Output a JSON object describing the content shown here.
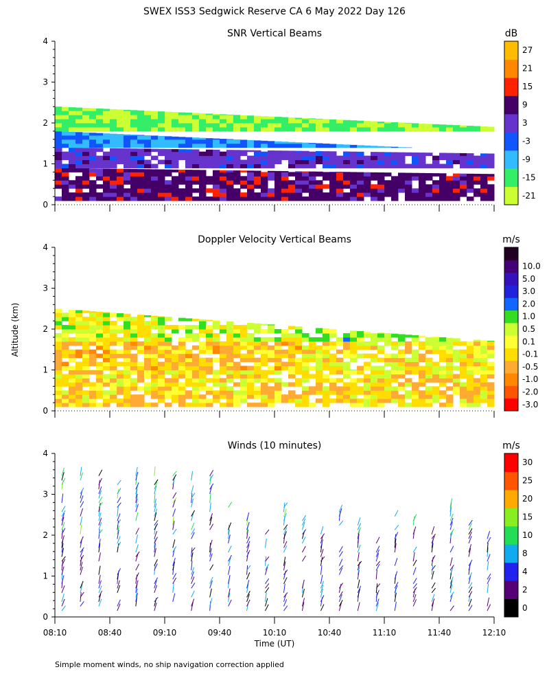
{
  "page_title": "SWEX ISS3 Sedgwick Reserve CA   6 May 2022 Day 126",
  "footnote": "Simple moment winds, no ship navigation correction applied",
  "ylabel": "Altitude (km)",
  "xlabel": "Time (UT)",
  "time_ticks": [
    "08:10",
    "08:40",
    "09:10",
    "09:40",
    "10:10",
    "10:40",
    "11:10",
    "11:40",
    "12:10"
  ],
  "colors": {
    "snr": [
      "#ccff33",
      "#33ee66",
      "#33bbff",
      "#1155ff",
      "#6633cc",
      "#440066",
      "#ff2200",
      "#ff8800",
      "#ffbb00"
    ],
    "doppler": [
      "#ff0000",
      "#ff5500",
      "#ff8800",
      "#ffaa33",
      "#ffdd00",
      "#ffff33",
      "#ccff33",
      "#33dd22",
      "#1166ff",
      "#2222dd",
      "#3311bb",
      "#440077",
      "#220022"
    ],
    "wind": [
      "#000000",
      "#550077",
      "#2222ee",
      "#11aaee",
      "#22dd55",
      "#88ee22",
      "#ffaa00",
      "#ff5500",
      "#ff0000"
    ]
  },
  "chart_data": [
    {
      "type": "heatmap",
      "title": "SNR Vertical Beams",
      "unit": "dB",
      "x_range": [
        "08:10",
        "12:10"
      ],
      "ylim": [
        0,
        4
      ],
      "yticks": [
        0,
        1,
        2,
        3,
        4
      ],
      "colorbar_labels": [
        "-21",
        "-15",
        "-9",
        "-3",
        "3",
        "9",
        "15",
        "21",
        "27"
      ],
      "colorbar_bounds": [
        -24,
        -18,
        -12,
        -6,
        0,
        6,
        12,
        18,
        24,
        30
      ],
      "profile_summary": [
        {
          "altitude_km_from": 0.1,
          "altitude_km_to": 0.9,
          "snr_db": 9
        },
        {
          "altitude_km_from": 0.9,
          "altitude_km_to": 1.4,
          "snr_db": 3
        },
        {
          "altitude_km_from": 1.4,
          "altitude_km_to": 1.8,
          "snr_db": -6
        },
        {
          "altitude_km_from": 1.8,
          "altitude_km_to": 2.4,
          "snr_db": -18
        }
      ]
    },
    {
      "type": "heatmap",
      "title": "Doppler Velocity Vertical Beams",
      "unit": "m/s",
      "x_range": [
        "08:10",
        "12:10"
      ],
      "ylim": [
        0,
        4
      ],
      "yticks": [
        0,
        1,
        2,
        3,
        4
      ],
      "colorbar_labels": [
        "-3.0",
        "-2.0",
        "-1.0",
        "-0.5",
        "-0.1",
        "0.1",
        "0.5",
        "1.0",
        "2.0",
        "3.0",
        "5.0",
        "10.0"
      ],
      "profile_summary": [
        {
          "altitude_km_from": 0.1,
          "altitude_km_to": 1.0,
          "velocity_ms": -0.3
        },
        {
          "altitude_km_from": 1.0,
          "altitude_km_to": 1.7,
          "velocity_ms": -0.5
        },
        {
          "altitude_km_from": 1.7,
          "altitude_km_to": 2.5,
          "velocity_ms": 0.1
        }
      ]
    },
    {
      "type": "scatter",
      "title": "Winds (10 minutes)",
      "unit": "m/s",
      "x_range": [
        "08:10",
        "12:10"
      ],
      "ylim": [
        0,
        4
      ],
      "yticks": [
        0,
        1,
        2,
        3,
        4
      ],
      "colorbar_labels": [
        "0",
        "2",
        "4",
        "8",
        "10",
        "15",
        "20",
        "25",
        "30"
      ],
      "colorbar_bounds": [
        0,
        2,
        4,
        6,
        10,
        12,
        18,
        22,
        28,
        34
      ],
      "profile_count": 24,
      "max_altitude_km": 3.5
    }
  ]
}
